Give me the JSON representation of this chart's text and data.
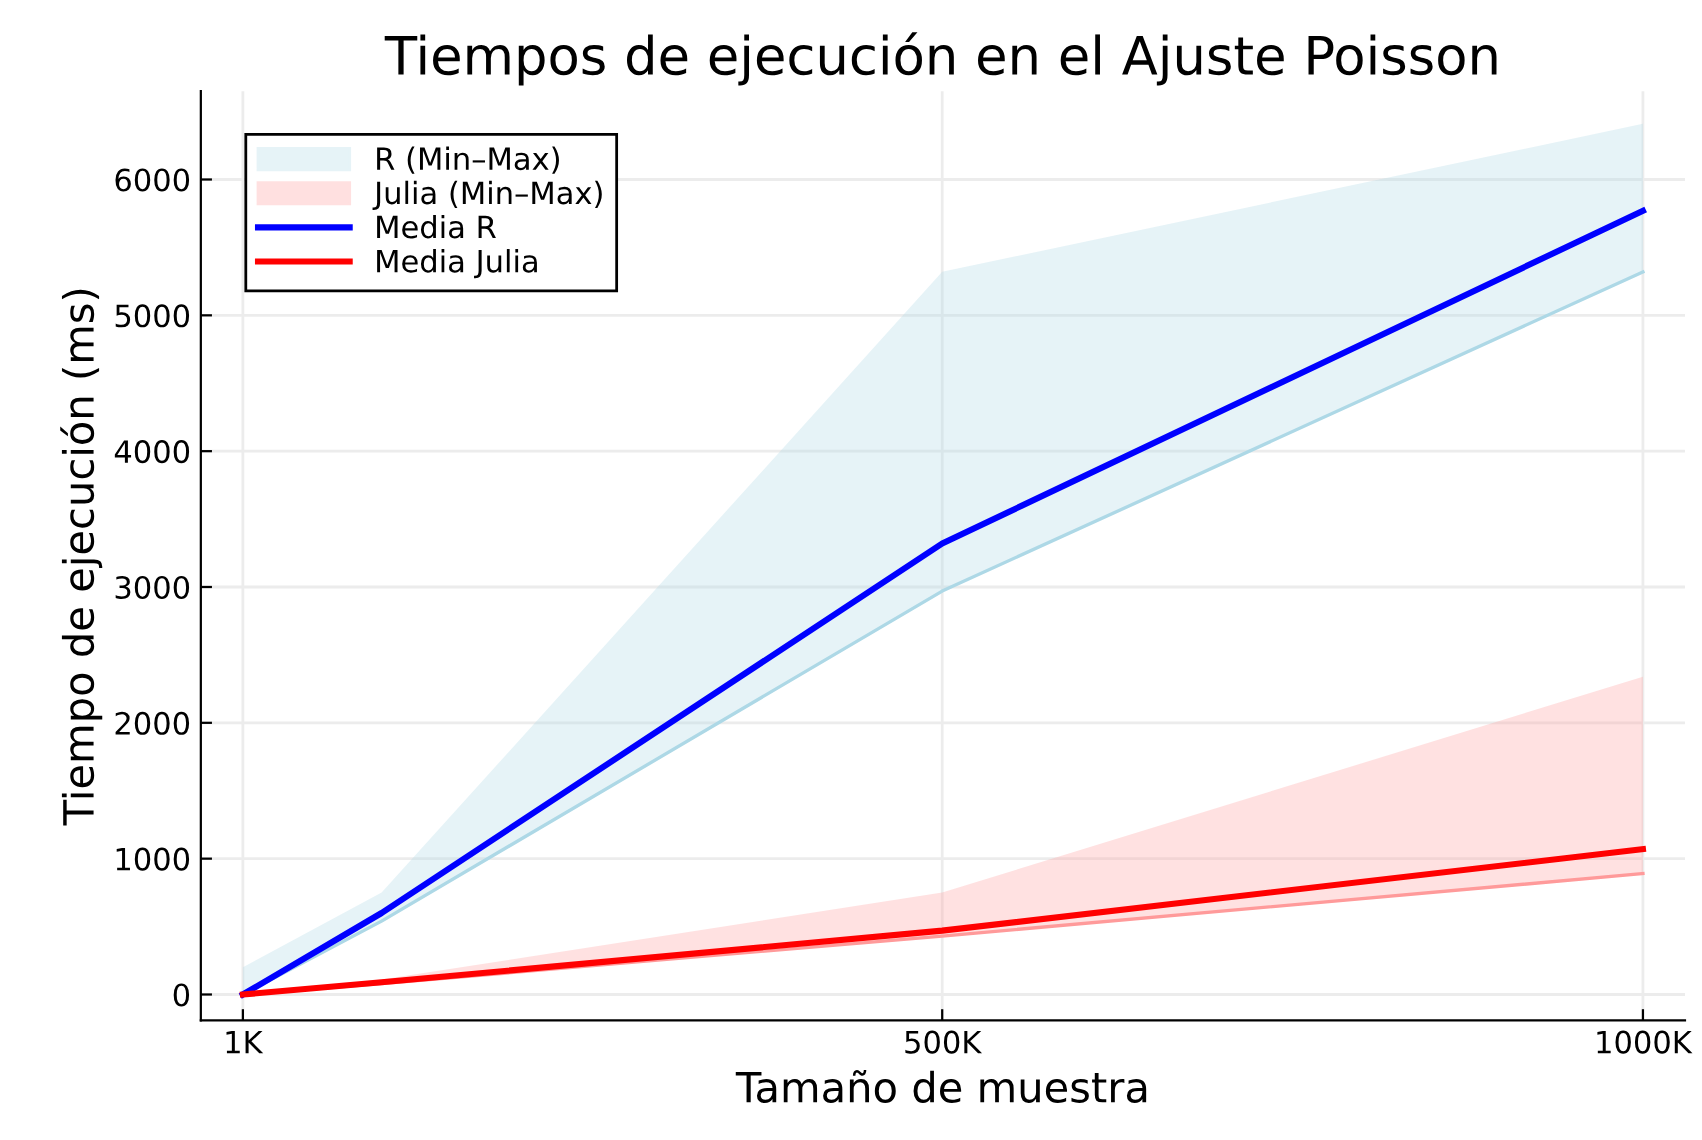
{
  "chart_data": {
    "type": "line",
    "title": "Tiempos de ejecución en el Ajuste Poisson",
    "xlabel": "Tamaño de muestra",
    "ylabel": "Tiempo de ejecución (ms)",
    "x": [
      1000,
      100000,
      500000,
      1000000
    ],
    "series": [
      {
        "name": "R (Min–Max)",
        "color": "#add8e6",
        "values": [
          0,
          540,
          2970,
          5320
        ],
        "lower": [
          0,
          540,
          2970,
          5320
        ],
        "upper": [
          200,
          750,
          5320,
          6410
        ]
      },
      {
        "name": "Julia (Min–Max)",
        "color": "#ff9a9a",
        "values": [
          0,
          80,
          430,
          890
        ],
        "lower": [
          0,
          80,
          430,
          890
        ],
        "upper": [
          0,
          110,
          750,
          2340
        ]
      },
      {
        "name": "Media R",
        "color": "#0000ff",
        "values": [
          0,
          600,
          3320,
          5770
        ]
      },
      {
        "name": "Media Julia",
        "color": "#ff0000",
        "values": [
          0,
          90,
          470,
          1070
        ]
      }
    ],
    "xlim": [
      -29000,
      1030000
    ],
    "ylim": [
      -190,
      6650
    ],
    "xticks": [
      {
        "value": 1000,
        "label": "1K"
      },
      {
        "value": 500000,
        "label": "500K"
      },
      {
        "value": 1000000,
        "label": "1000K"
      }
    ],
    "yticks": [
      0,
      1000,
      2000,
      3000,
      4000,
      5000,
      6000
    ],
    "grid": true,
    "legend": "top left",
    "line_style": "solid"
  }
}
